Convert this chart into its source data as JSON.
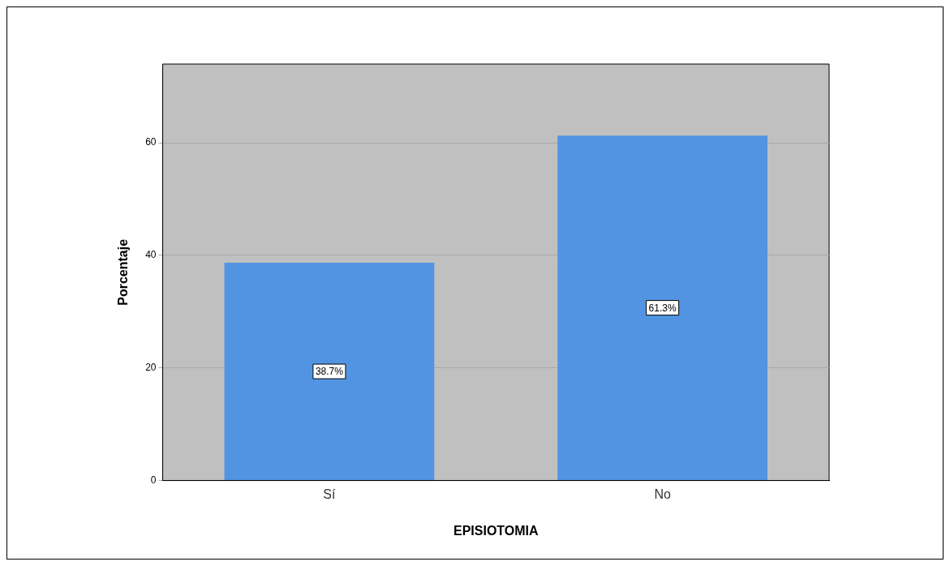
{
  "chart_data": {
    "type": "bar",
    "xlabel": "EPISIOTOMIA",
    "ylabel": "Porcentaje",
    "categories": [
      "Sí",
      "No"
    ],
    "values": [
      38.7,
      61.3
    ],
    "color": "#5294e2",
    "value_labels": [
      "38.7%",
      "61.3%"
    ],
    "ylim": [
      0,
      74
    ],
    "yticks": [
      0,
      20,
      40,
      60
    ],
    "grid": "y",
    "legend": false
  }
}
